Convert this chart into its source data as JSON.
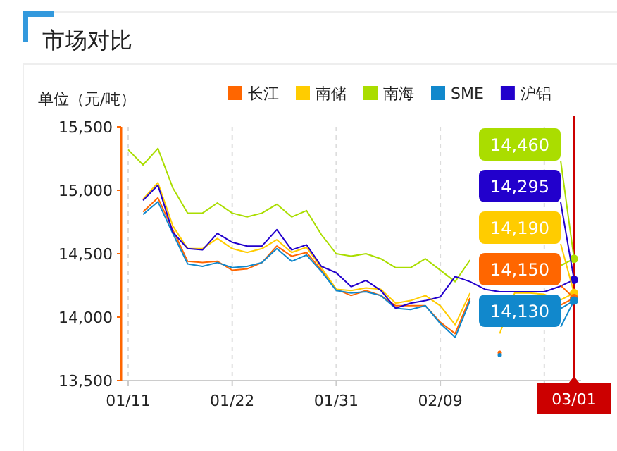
{
  "chart_data": {
    "type": "line",
    "title": "市场对比",
    "ylabel": "单位（元/吨）",
    "categories": [
      "01/11",
      null,
      null,
      null,
      null,
      null,
      null,
      "01/22",
      null,
      null,
      null,
      null,
      null,
      null,
      "01/31",
      null,
      null,
      null,
      null,
      null,
      null,
      "02/09",
      null,
      null,
      null,
      null,
      null,
      null,
      null,
      null,
      "03/01"
    ],
    "ylim": [
      13500,
      15500
    ],
    "yticks": [
      {
        "value": 13500,
        "label": "13,500"
      },
      {
        "value": 14000,
        "label": "14,000"
      },
      {
        "value": 14500,
        "label": "14,500"
      },
      {
        "value": 15000,
        "label": "15,000"
      },
      {
        "value": 15500,
        "label": "15,500"
      }
    ],
    "grid": "x",
    "legend": "top right",
    "ref_lines": [
      {
        "axis": "x",
        "value": "03/01",
        "color": "#cc0000"
      }
    ],
    "series": [
      {
        "name": "长江",
        "color": "#ff6600",
        "values": [
          null,
          14830,
          14940,
          14690,
          14440,
          14430,
          14440,
          14370,
          14380,
          14430,
          14560,
          14480,
          14510,
          14370,
          14220,
          14170,
          14210,
          14170,
          14090,
          14090,
          14090,
          13960,
          13870,
          14150,
          null,
          13720,
          null,
          null,
          null,
          14090,
          14150
        ],
        "value_labels": [
          null,
          null,
          null,
          null,
          null,
          null,
          null,
          null,
          null,
          null,
          null,
          null,
          null,
          null,
          null,
          null,
          null,
          null,
          null,
          null,
          null,
          null,
          null,
          null,
          null,
          null,
          null,
          null,
          null,
          null,
          "14,150"
        ]
      },
      {
        "name": "南储",
        "color": "#ffcc00",
        "values": [
          null,
          14930,
          15060,
          14720,
          14540,
          14540,
          14620,
          14540,
          14510,
          14540,
          14610,
          14510,
          14550,
          14390,
          14220,
          14210,
          14230,
          14220,
          14110,
          14130,
          14170,
          14090,
          13940,
          14190,
          null,
          13870,
          14190,
          14190,
          14180,
          14130,
          14190
        ],
        "value_labels": [
          null,
          null,
          null,
          null,
          null,
          null,
          null,
          null,
          null,
          null,
          null,
          null,
          null,
          null,
          null,
          null,
          null,
          null,
          null,
          null,
          null,
          null,
          null,
          null,
          null,
          null,
          null,
          null,
          null,
          null,
          "14,190"
        ]
      },
      {
        "name": "南海",
        "color": "#aadd00",
        "values": [
          15320,
          15200,
          15330,
          15020,
          14820,
          14820,
          14900,
          14820,
          14790,
          14820,
          14890,
          14790,
          14840,
          14650,
          14500,
          14480,
          14500,
          14460,
          14390,
          14390,
          14460,
          14370,
          14280,
          14450,
          null,
          null,
          null,
          null,
          null,
          14400,
          14460
        ],
        "value_labels": [
          null,
          null,
          null,
          null,
          null,
          null,
          null,
          null,
          null,
          null,
          null,
          null,
          null,
          null,
          null,
          null,
          null,
          null,
          null,
          null,
          null,
          null,
          null,
          null,
          null,
          null,
          null,
          null,
          null,
          null,
          "14,460"
        ]
      },
      {
        "name": "SME",
        "color": "#1188cc",
        "values": [
          null,
          14810,
          14910,
          14660,
          14420,
          14400,
          14430,
          14390,
          14400,
          14430,
          14540,
          14440,
          14490,
          14360,
          14210,
          14190,
          14200,
          14170,
          14070,
          14060,
          14090,
          13950,
          13840,
          14130,
          null,
          13700,
          null,
          null,
          null,
          14060,
          14130
        ],
        "value_labels": [
          null,
          null,
          null,
          null,
          null,
          null,
          null,
          null,
          null,
          null,
          null,
          null,
          null,
          null,
          null,
          null,
          null,
          null,
          null,
          null,
          null,
          null,
          null,
          null,
          null,
          null,
          null,
          null,
          null,
          null,
          "14,130"
        ]
      },
      {
        "name": "沪铝",
        "color": "#2200cc",
        "values": [
          null,
          14920,
          15040,
          14670,
          14540,
          14530,
          14660,
          14590,
          14560,
          14560,
          14690,
          14530,
          14570,
          14400,
          14350,
          14240,
          14290,
          14210,
          14070,
          14110,
          14130,
          14160,
          14320,
          14280,
          14220,
          14200,
          14200,
          14200,
          14200,
          14240,
          14295
        ],
        "value_labels": [
          null,
          null,
          null,
          null,
          null,
          null,
          null,
          null,
          null,
          null,
          null,
          null,
          null,
          null,
          null,
          null,
          null,
          null,
          null,
          null,
          null,
          null,
          null,
          null,
          null,
          null,
          null,
          null,
          null,
          null,
          "14,295"
        ]
      }
    ]
  }
}
